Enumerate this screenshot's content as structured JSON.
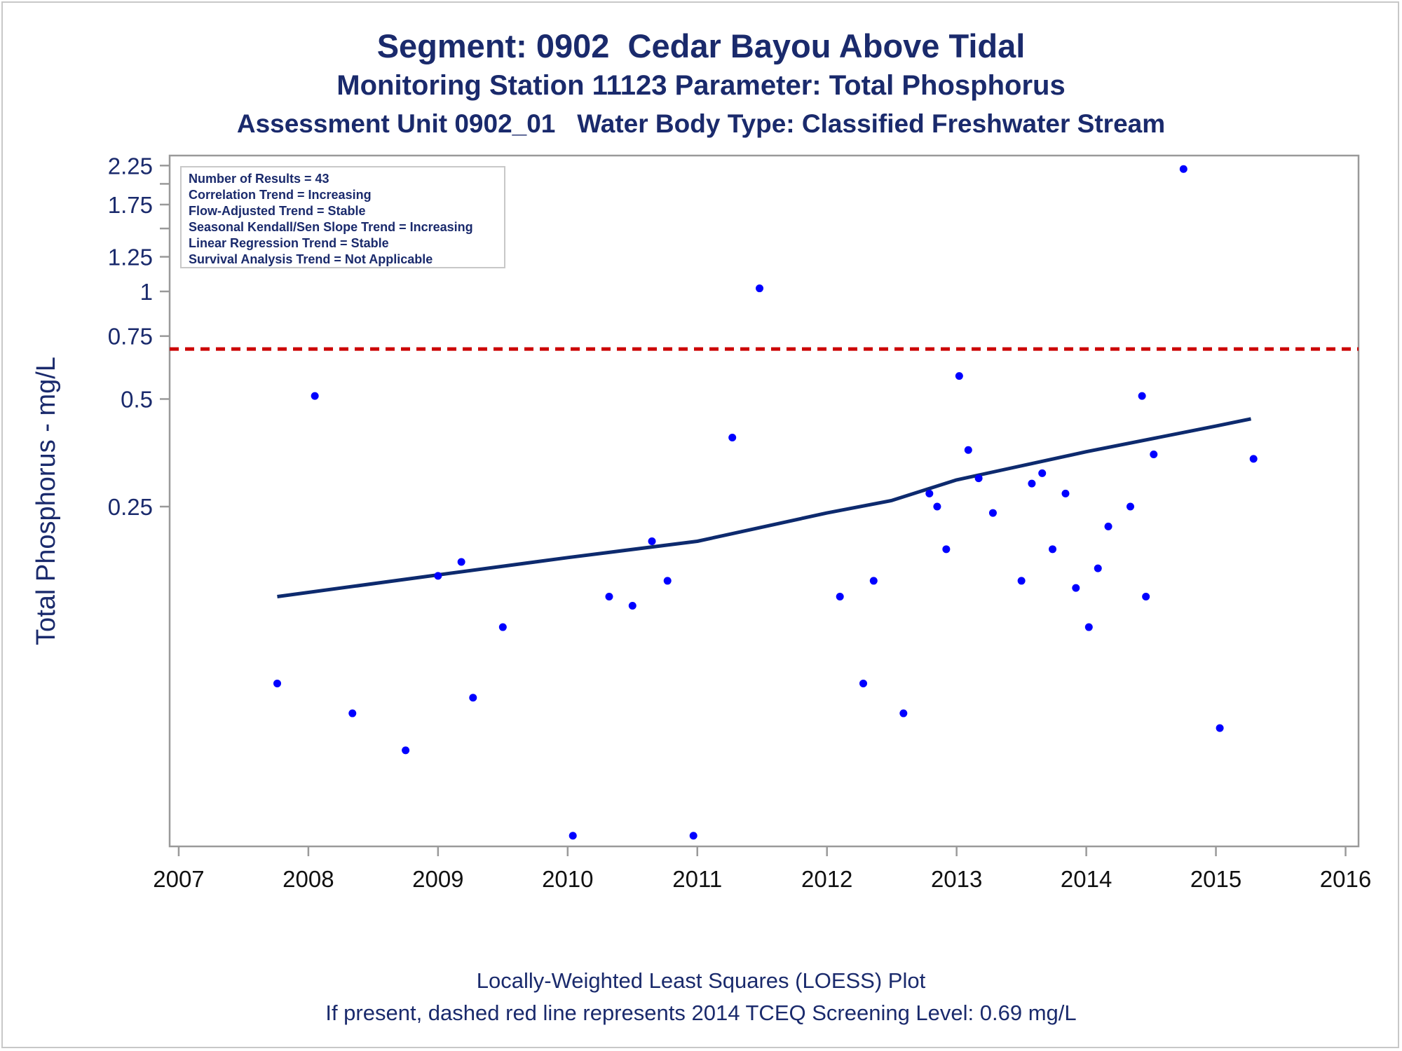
{
  "titles": {
    "line1": "Segment: 0902  Cedar Bayou Above Tidal",
    "line2": "Monitoring Station 11123 Parameter: Total Phosphorus",
    "line3": "Assessment Unit 0902_01   Water Body Type: Classified Freshwater Stream"
  },
  "footnotes": {
    "line1": "Locally-Weighted Least Squares (LOESS) Plot",
    "line2": "If present, dashed red line represents 2014 TCEQ Screening Level: 0.69 mg/L"
  },
  "stats_box": {
    "lines": [
      "Number of Results = 43",
      "Correlation Trend = Increasing",
      "Flow-Adjusted Trend = Stable",
      "Seasonal Kendall/Sen Slope Trend = Increasing",
      "Linear Regression Trend = Stable",
      "Survival Analysis Trend = Not Applicable"
    ]
  },
  "colors": {
    "text": "#1a2a6c",
    "points": "#0000ff",
    "loess": "#0d2a6e",
    "screening": "#cc0000",
    "axis": "#9a9a9a"
  },
  "chart_data": {
    "type": "scatter",
    "title": "Segment: 0902  Cedar Bayou Above Tidal",
    "xlabel": "",
    "ylabel": "Total Phosphorus - mg/L",
    "x_ticks": [
      "2007",
      "2008",
      "2009",
      "2010",
      "2011",
      "2012",
      "2013",
      "2014",
      "2015",
      "2016"
    ],
    "y_ticks": [
      "0.25",
      "0.5",
      "0.75",
      "1",
      "1.25",
      "1.75",
      "2.25"
    ],
    "y_scale": "log",
    "xlim": [
      2006.93,
      2016.1
    ],
    "ylim": [
      0.028,
      2.4
    ],
    "grid": false,
    "screening_level": 0.69,
    "points": [
      [
        2007.76,
        0.08
      ],
      [
        2008.05,
        0.51
      ],
      [
        2008.34,
        0.066
      ],
      [
        2008.75,
        0.052
      ],
      [
        2009.0,
        0.16
      ],
      [
        2009.18,
        0.175
      ],
      [
        2009.27,
        0.073
      ],
      [
        2009.5,
        0.115
      ],
      [
        2010.04,
        0.03
      ],
      [
        2010.32,
        0.14
      ],
      [
        2010.5,
        0.132
      ],
      [
        2010.65,
        0.2
      ],
      [
        2010.77,
        0.155
      ],
      [
        2010.97,
        0.03
      ],
      [
        2011.27,
        0.39
      ],
      [
        2011.48,
        1.02
      ],
      [
        2012.1,
        0.14
      ],
      [
        2012.28,
        0.08
      ],
      [
        2012.36,
        0.155
      ],
      [
        2012.59,
        0.066
      ],
      [
        2012.79,
        0.272
      ],
      [
        2012.85,
        0.25
      ],
      [
        2012.92,
        0.19
      ],
      [
        2013.02,
        0.58
      ],
      [
        2013.09,
        0.36
      ],
      [
        2013.17,
        0.3
      ],
      [
        2013.28,
        0.24
      ],
      [
        2013.5,
        0.155
      ],
      [
        2013.58,
        0.29
      ],
      [
        2013.66,
        0.31
      ],
      [
        2013.74,
        0.19
      ],
      [
        2013.84,
        0.272
      ],
      [
        2013.92,
        0.148
      ],
      [
        2014.02,
        0.115
      ],
      [
        2014.09,
        0.168
      ],
      [
        2014.17,
        0.22
      ],
      [
        2014.34,
        0.25
      ],
      [
        2014.43,
        0.51
      ],
      [
        2014.46,
        0.14
      ],
      [
        2014.52,
        0.35
      ],
      [
        2014.75,
        2.2
      ],
      [
        2015.03,
        0.06
      ],
      [
        2015.29,
        0.34
      ]
    ],
    "series": [
      {
        "type": "line",
        "values": [
          [
            2007.76,
            0.14
          ],
          [
            2009.0,
            0.161
          ],
          [
            2010.0,
            0.18
          ],
          [
            2011.0,
            0.2
          ],
          [
            2012.0,
            0.24
          ],
          [
            2012.5,
            0.26
          ],
          [
            2013.0,
            0.297
          ],
          [
            2014.0,
            0.356
          ],
          [
            2015.0,
            0.42
          ],
          [
            2015.27,
            0.44
          ]
        ]
      }
    ]
  }
}
